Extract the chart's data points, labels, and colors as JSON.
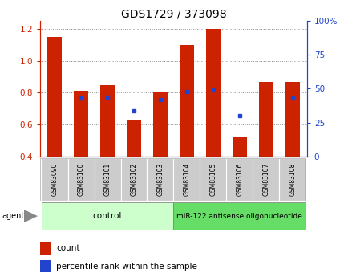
{
  "title": "GDS1729 / 373098",
  "samples": [
    "GSM83090",
    "GSM83100",
    "GSM83101",
    "GSM83102",
    "GSM83103",
    "GSM83104",
    "GSM83105",
    "GSM83106",
    "GSM83107",
    "GSM83108"
  ],
  "count_values": [
    1.15,
    0.81,
    0.845,
    0.625,
    0.805,
    1.1,
    1.2,
    0.52,
    0.865,
    0.865
  ],
  "percentile_values": [
    null,
    0.765,
    0.77,
    0.685,
    0.755,
    0.805,
    0.815,
    0.655,
    null,
    0.765
  ],
  "ylim_left": [
    0.4,
    1.25
  ],
  "ylim_right": [
    0,
    100
  ],
  "yticks_left": [
    0.4,
    0.6,
    0.8,
    1.0,
    1.2
  ],
  "yticks_right": [
    0,
    25,
    50,
    75,
    100
  ],
  "bar_color": "#cc2200",
  "dot_color": "#2244cc",
  "bar_width": 0.55,
  "group1_label": "control",
  "group2_label": "miR-122 antisense oligonucleotide",
  "group1_indices": [
    0,
    1,
    2,
    3,
    4
  ],
  "group2_indices": [
    5,
    6,
    7,
    8,
    9
  ],
  "group1_color": "#ccffcc",
  "group2_color": "#66dd66",
  "tick_bg_color": "#cccccc",
  "legend_count_label": "count",
  "legend_percentile_label": "percentile rank within the sample",
  "agent_label": "agent",
  "bg_color": "#ffffff"
}
